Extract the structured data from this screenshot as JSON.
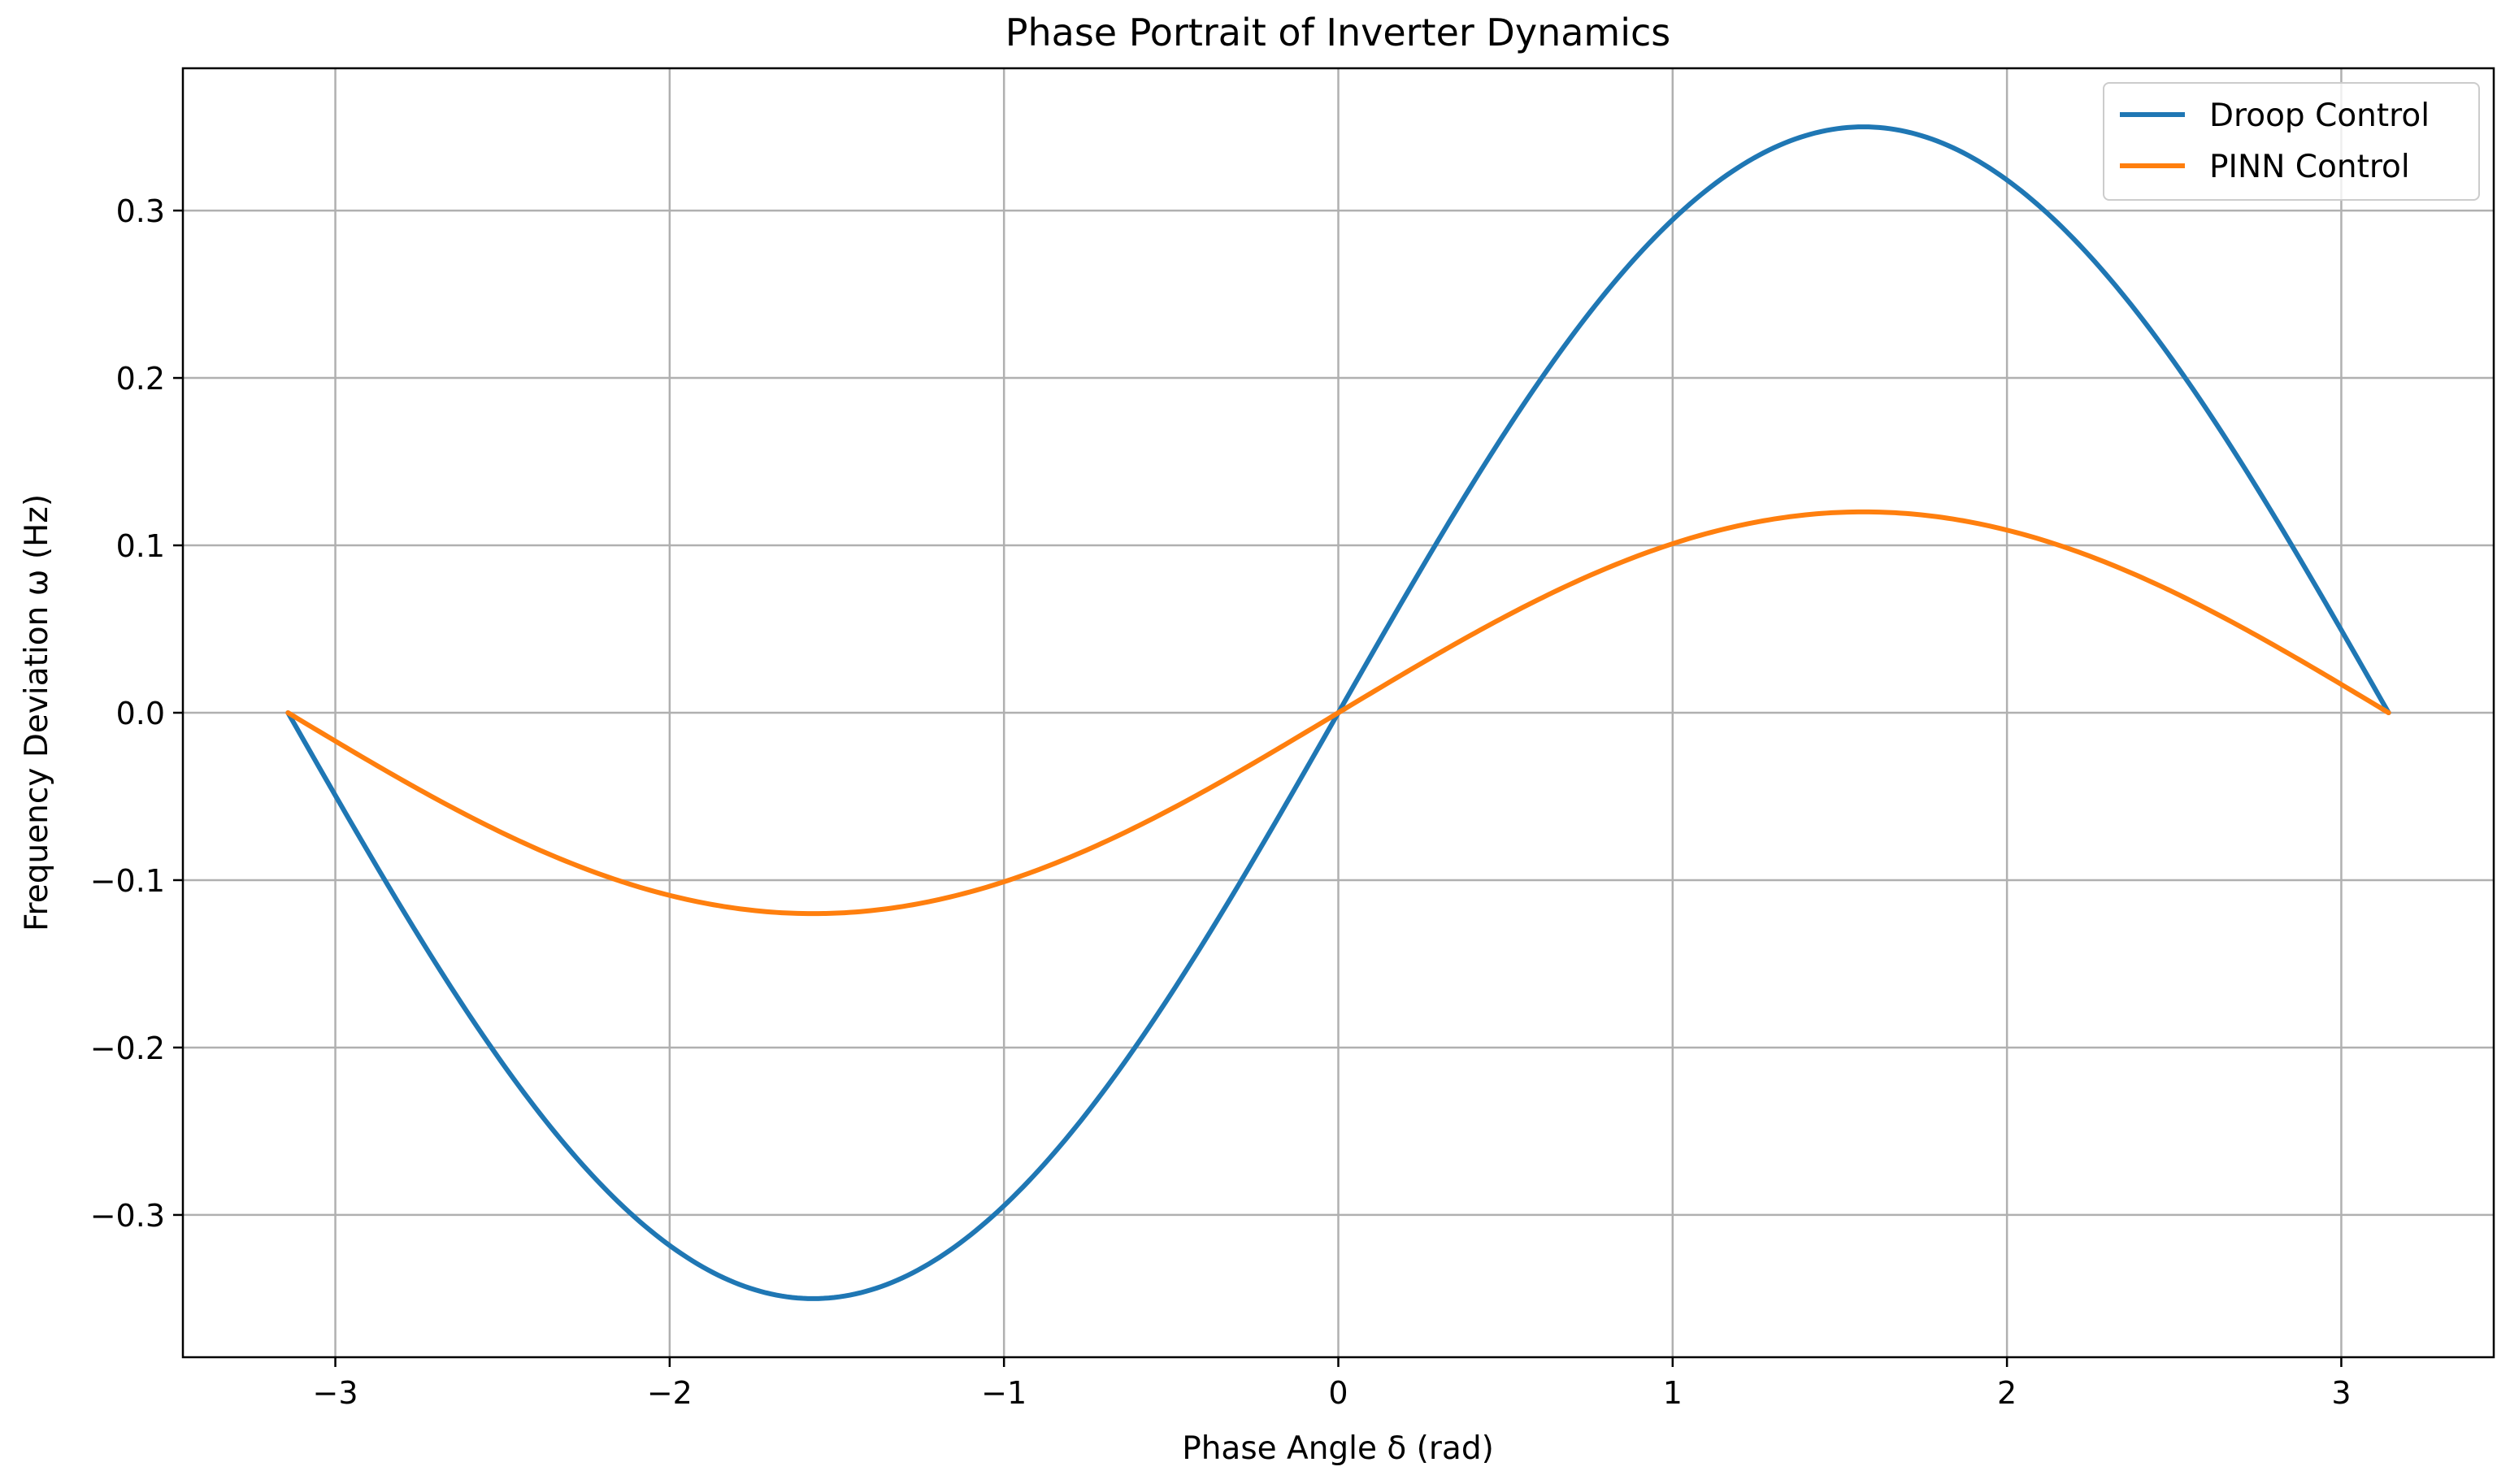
{
  "chart_data": {
    "type": "line",
    "title": "Phase Portrait of Inverter Dynamics",
    "xlabel": "Phase Angle δ (rad)",
    "ylabel": "Frequency Deviation ω (Hz)",
    "xlim": [
      -3.456,
      3.456
    ],
    "ylim": [
      -0.385,
      0.385
    ],
    "grid": true,
    "legend_position": "top-right",
    "x_ticks": [
      {
        "value": -3,
        "label": "−3"
      },
      {
        "value": -2,
        "label": "−2"
      },
      {
        "value": -1,
        "label": "−1"
      },
      {
        "value": 0,
        "label": "0"
      },
      {
        "value": 1,
        "label": "1"
      },
      {
        "value": 2,
        "label": "2"
      },
      {
        "value": 3,
        "label": "3"
      }
    ],
    "y_ticks": [
      {
        "value": -0.3,
        "label": "−0.3"
      },
      {
        "value": -0.2,
        "label": "−0.2"
      },
      {
        "value": -0.1,
        "label": "−0.1"
      },
      {
        "value": 0.0,
        "label": "0.0"
      },
      {
        "value": 0.1,
        "label": "0.1"
      },
      {
        "value": 0.2,
        "label": "0.2"
      },
      {
        "value": 0.3,
        "label": "0.3"
      }
    ],
    "x": [
      -3.1416,
      -2.9845,
      -2.8274,
      -2.6704,
      -2.5133,
      -2.3562,
      -2.1991,
      -2.042,
      -1.885,
      -1.7279,
      -1.5708,
      -1.4137,
      -1.2566,
      -1.0996,
      -0.9425,
      -0.7854,
      -0.6283,
      -0.4712,
      -0.3142,
      -0.1571,
      0.0,
      0.1571,
      0.3142,
      0.4712,
      0.6283,
      0.7854,
      0.9425,
      1.0996,
      1.2566,
      1.4137,
      1.5708,
      1.7279,
      1.885,
      2.042,
      2.1991,
      2.3562,
      2.5133,
      2.6704,
      2.8274,
      2.9845,
      3.1416
    ],
    "series": [
      {
        "name": "Droop Control",
        "color": "#1f77b4",
        "values": [
          0.0,
          -0.0548,
          -0.1082,
          -0.1589,
          -0.2057,
          -0.2475,
          -0.2832,
          -0.3118,
          -0.3329,
          -0.3457,
          -0.35,
          -0.3457,
          -0.3329,
          -0.3118,
          -0.2832,
          -0.2475,
          -0.2057,
          -0.1589,
          -0.1082,
          -0.0548,
          0.0,
          0.0548,
          0.1082,
          0.1589,
          0.2057,
          0.2475,
          0.2832,
          0.3118,
          0.3329,
          0.3457,
          0.35,
          0.3457,
          0.3329,
          0.3118,
          0.2832,
          0.2475,
          0.2057,
          0.1589,
          0.1082,
          0.0548,
          0.0
        ]
      },
      {
        "name": "PINN Control",
        "color": "#ff7f0e",
        "values": [
          0.0,
          -0.0188,
          -0.0371,
          -0.0545,
          -0.0705,
          -0.0849,
          -0.0971,
          -0.1069,
          -0.1141,
          -0.1185,
          -0.12,
          -0.1185,
          -0.1141,
          -0.1069,
          -0.0971,
          -0.0849,
          -0.0705,
          -0.0545,
          -0.0371,
          -0.0188,
          0.0,
          0.0188,
          0.0371,
          0.0545,
          0.0705,
          0.0849,
          0.0971,
          0.1069,
          0.1141,
          0.1185,
          0.12,
          0.1185,
          0.1141,
          0.1069,
          0.0971,
          0.0849,
          0.0705,
          0.0545,
          0.0371,
          0.0188,
          0.0
        ]
      }
    ]
  }
}
